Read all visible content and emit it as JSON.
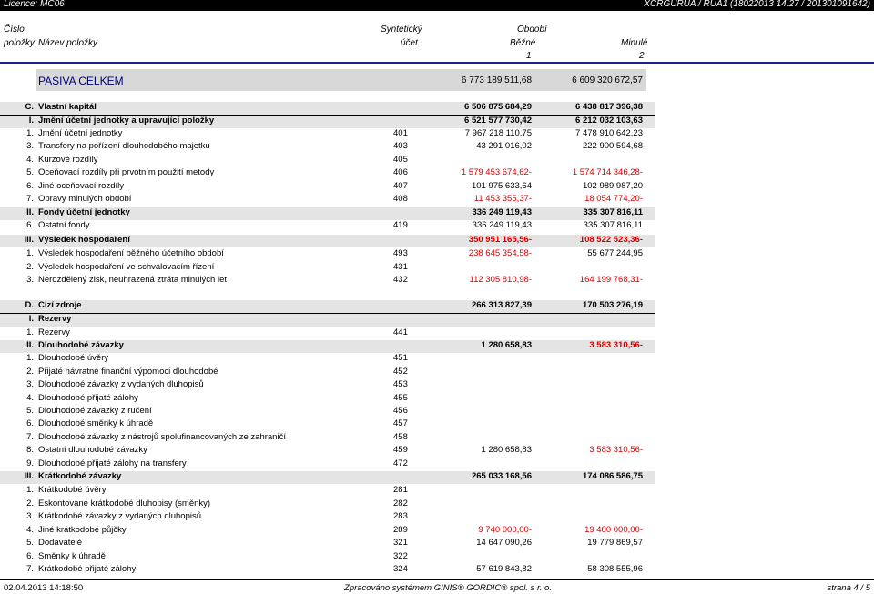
{
  "top_bar": {
    "licence": "Licence: MC06",
    "report_id": "XCRGURUA / RUA1 (18022013 14:27 / 201301091642)"
  },
  "header": {
    "cislo": "Číslo",
    "polozky": "položky",
    "nazev": "Název položky",
    "synteticky": "Syntetický",
    "ucet": "účet",
    "obdobi": "Období",
    "bezne": "Běžné",
    "minule": "Minulé",
    "col1": "1",
    "col2": "2"
  },
  "total": {
    "label": "PASIVA CELKEM",
    "v1": "6 773 189 511,68",
    "v2": "6 609 320 672,57"
  },
  "rows": [
    {
      "type": "sec",
      "code": "C.",
      "label": "Vlastní kapitál",
      "syn": "",
      "v1": "6 506 875 684,29",
      "v2": "6 438 817 396,38",
      "neg1": false,
      "neg2": false
    },
    {
      "type": "sub",
      "code": "I.",
      "label": "Jmění účetní jednotky a upravující položky",
      "syn": "",
      "v1": "6 521 577 730,42",
      "v2": "6 212 032 103,63",
      "neg1": false,
      "neg2": false
    },
    {
      "type": "item",
      "code": "1.",
      "label": "Jmění účetní jednotky",
      "syn": "401",
      "v1": "7 967 218 110,75",
      "v2": "7 478 910 642,23",
      "neg1": false,
      "neg2": false
    },
    {
      "type": "item",
      "code": "3.",
      "label": "Transfery na pořízení dlouhodobého majetku",
      "syn": "403",
      "v1": "43 291 016,02",
      "v2": "222 900 594,68",
      "neg1": false,
      "neg2": false
    },
    {
      "type": "item",
      "code": "4.",
      "label": "Kurzové rozdíly",
      "syn": "405",
      "v1": "",
      "v2": "",
      "neg1": false,
      "neg2": false
    },
    {
      "type": "item",
      "code": "5.",
      "label": "Oceňovací rozdíly při prvotním použití metody",
      "syn": "406",
      "v1": "1 579 453 674,62-",
      "v2": "1 574 714 346,28-",
      "neg1": true,
      "neg2": true
    },
    {
      "type": "item",
      "code": "6.",
      "label": "Jiné oceňovací rozdíly",
      "syn": "407",
      "v1": "101 975 633,64",
      "v2": "102 989 987,20",
      "neg1": false,
      "neg2": false
    },
    {
      "type": "item",
      "code": "7.",
      "label": "Opravy minulých období",
      "syn": "408",
      "v1": "11 453 355,37-",
      "v2": "18 054 774,20-",
      "neg1": true,
      "neg2": true
    },
    {
      "type": "sub",
      "code": "II.",
      "label": "Fondy účetní jednotky",
      "syn": "",
      "v1": "336 249 119,43",
      "v2": "335 307 816,11",
      "neg1": false,
      "neg2": false
    },
    {
      "type": "item",
      "code": "6.",
      "label": "Ostatní fondy",
      "syn": "419",
      "v1": "336 249 119,43",
      "v2": "335 307 816,11",
      "neg1": false,
      "neg2": false
    },
    {
      "type": "sub",
      "code": "III.",
      "label": "Výsledek hospodaření",
      "syn": "",
      "v1": "350 951 165,56-",
      "v2": "108 522 523,36-",
      "neg1": true,
      "neg2": true
    },
    {
      "type": "item",
      "code": "1.",
      "label": "Výsledek hospodaření běžného účetního období",
      "syn": "493",
      "v1": "238 645 354,58-",
      "v2": "55 677 244,95",
      "neg1": true,
      "neg2": false
    },
    {
      "type": "item",
      "code": "2.",
      "label": "Výsledek hospodaření ve schvalovacím řízení",
      "syn": "431",
      "v1": "",
      "v2": "",
      "neg1": false,
      "neg2": false
    },
    {
      "type": "item",
      "code": "3.",
      "label": "Nerozdělený zisk, neuhrazená ztráta minulých let",
      "syn": "432",
      "v1": "112 305 810,98-",
      "v2": "164 199 768,31-",
      "neg1": true,
      "neg2": true
    },
    {
      "type": "sec",
      "code": "D.",
      "label": "Cizí zdroje",
      "syn": "",
      "v1": "266 313 827,39",
      "v2": "170 503 276,19",
      "neg1": false,
      "neg2": false
    },
    {
      "type": "sub",
      "code": "I.",
      "label": "Rezervy",
      "syn": "",
      "v1": "",
      "v2": "",
      "neg1": false,
      "neg2": false
    },
    {
      "type": "item",
      "code": "1.",
      "label": "Rezervy",
      "syn": "441",
      "v1": "",
      "v2": "",
      "neg1": false,
      "neg2": false
    },
    {
      "type": "sub",
      "code": "II.",
      "label": "Dlouhodobé závazky",
      "syn": "",
      "v1": "1 280 658,83",
      "v2": "3 583 310,56-",
      "neg1": false,
      "neg2": true
    },
    {
      "type": "item",
      "code": "1.",
      "label": "Dlouhodobé úvěry",
      "syn": "451",
      "v1": "",
      "v2": "",
      "neg1": false,
      "neg2": false
    },
    {
      "type": "item",
      "code": "2.",
      "label": "Přijaté návratné finanční výpomoci dlouhodobé",
      "syn": "452",
      "v1": "",
      "v2": "",
      "neg1": false,
      "neg2": false
    },
    {
      "type": "item",
      "code": "3.",
      "label": "Dlouhodobé závazky z vydaných dluhopisů",
      "syn": "453",
      "v1": "",
      "v2": "",
      "neg1": false,
      "neg2": false
    },
    {
      "type": "item",
      "code": "4.",
      "label": "Dlouhodobé přijaté zálohy",
      "syn": "455",
      "v1": "",
      "v2": "",
      "neg1": false,
      "neg2": false
    },
    {
      "type": "item",
      "code": "5.",
      "label": "Dlouhodobé závazky z ručení",
      "syn": "456",
      "v1": "",
      "v2": "",
      "neg1": false,
      "neg2": false
    },
    {
      "type": "item",
      "code": "6.",
      "label": "Dlouhodobé směnky k úhradě",
      "syn": "457",
      "v1": "",
      "v2": "",
      "neg1": false,
      "neg2": false
    },
    {
      "type": "item",
      "code": "7.",
      "label": "Dlouhodobé závazky z nástrojů spolufinancovaných ze zahraničí",
      "syn": "458",
      "v1": "",
      "v2": "",
      "neg1": false,
      "neg2": false
    },
    {
      "type": "item",
      "code": "8.",
      "label": "Ostatní dlouhodobé závazky",
      "syn": "459",
      "v1": "1 280 658,83",
      "v2": "3 583 310,56-",
      "neg1": false,
      "neg2": true
    },
    {
      "type": "item",
      "code": "9.",
      "label": "Dlouhodobé přijaté zálohy na transfery",
      "syn": "472",
      "v1": "",
      "v2": "",
      "neg1": false,
      "neg2": false
    },
    {
      "type": "sub",
      "code": "III.",
      "label": "Krátkodobé závazky",
      "syn": "",
      "v1": "265 033 168,56",
      "v2": "174 086 586,75",
      "neg1": false,
      "neg2": false
    },
    {
      "type": "item",
      "code": "1.",
      "label": "Krátkodobé úvěry",
      "syn": "281",
      "v1": "",
      "v2": "",
      "neg1": false,
      "neg2": false
    },
    {
      "type": "item",
      "code": "2.",
      "label": "Eskontované krátkodobé dluhopisy (směnky)",
      "syn": "282",
      "v1": "",
      "v2": "",
      "neg1": false,
      "neg2": false
    },
    {
      "type": "item",
      "code": "3.",
      "label": "Krátkodobé závazky z vydaných dluhopisů",
      "syn": "283",
      "v1": "",
      "v2": "",
      "neg1": false,
      "neg2": false
    },
    {
      "type": "item",
      "code": "4.",
      "label": "Jiné krátkodobé půjčky",
      "syn": "289",
      "v1": "9 740 000,00-",
      "v2": "19 480 000,00-",
      "neg1": true,
      "neg2": true
    },
    {
      "type": "item",
      "code": "5.",
      "label": "Dodavatelé",
      "syn": "321",
      "v1": "14 647 090,26",
      "v2": "19 779 869,57",
      "neg1": false,
      "neg2": false
    },
    {
      "type": "item",
      "code": "6.",
      "label": "Směnky k úhradě",
      "syn": "322",
      "v1": "",
      "v2": "",
      "neg1": false,
      "neg2": false
    },
    {
      "type": "item",
      "code": "7.",
      "label": "Krátkodobé přijaté zálohy",
      "syn": "324",
      "v1": "57 619 843,82",
      "v2": "58 308 555,96",
      "neg1": false,
      "neg2": false
    }
  ],
  "footer": {
    "date": "02.04.2013 14:18:50",
    "processed": "Zpracováno systémem GINIS® GORDIC® spol. s r. o.",
    "page": "strana 4 / 5"
  }
}
